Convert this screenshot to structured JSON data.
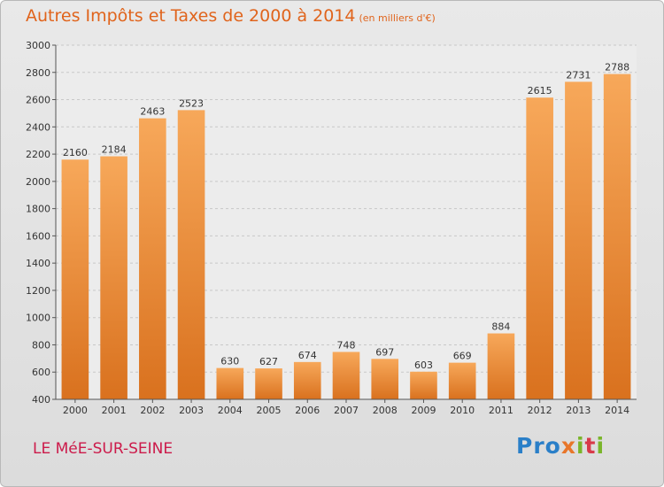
{
  "header": {
    "title": "Autres Impôts et Taxes de 2000 à 2014",
    "subtitle": "(en milliers d'€)"
  },
  "footer": {
    "location": "LE MéE-SUR-SEINE",
    "brand": {
      "p1": "Pro",
      "p2": "x",
      "p3": "i",
      "p4": "t",
      "p5": "i"
    }
  },
  "colors": {
    "bar_top": "#f7a85a",
    "bar_bottom": "#d9711e",
    "title": "#e0641c",
    "location": "#cc1a4a"
  },
  "chart_data": {
    "type": "bar",
    "categories": [
      "2000",
      "2001",
      "2002",
      "2003",
      "2004",
      "2005",
      "2006",
      "2007",
      "2008",
      "2009",
      "2010",
      "2011",
      "2012",
      "2013",
      "2014"
    ],
    "values": [
      2160,
      2184,
      2463,
      2523,
      630,
      627,
      674,
      748,
      697,
      603,
      669,
      884,
      2615,
      2731,
      2788
    ],
    "ylim": [
      400,
      3000
    ],
    "yticks": [
      400,
      600,
      800,
      1000,
      1200,
      1400,
      1600,
      1800,
      2000,
      2200,
      2400,
      2600,
      2800,
      3000
    ],
    "grid": true
  }
}
